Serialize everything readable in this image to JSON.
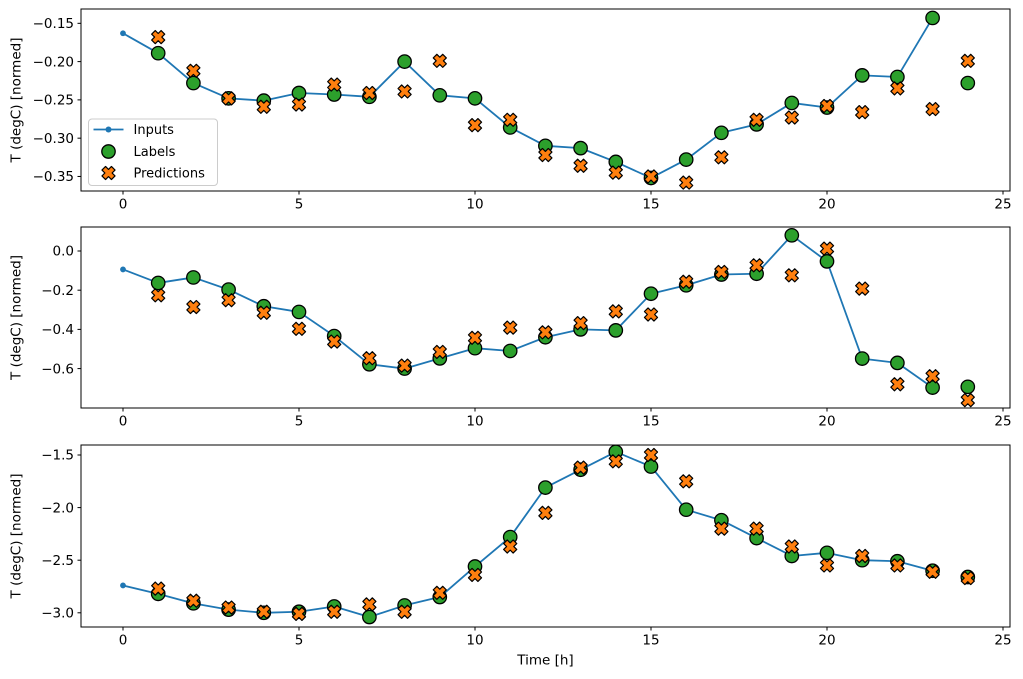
{
  "figure_title": "",
  "xlabel": "Time [h]",
  "ylabel": "T (degC) [normed]",
  "colors": {
    "inputs_line": "#1f77b4",
    "labels_marker": "#2ca02c",
    "predictions_marker": "#ff7f0e",
    "marker_edge": "#000000",
    "axis": "#000000",
    "text": "#000000",
    "legend_border": "#cccccc",
    "background": "#ffffff"
  },
  "legend": {
    "entries": [
      {
        "label": "Inputs",
        "type": "line-dot"
      },
      {
        "label": "Labels",
        "type": "circle"
      },
      {
        "label": "Predictions",
        "type": "x"
      }
    ]
  },
  "x_ticks": [
    {
      "value": 0,
      "label": "0"
    },
    {
      "value": 5,
      "label": "5"
    },
    {
      "value": 10,
      "label": "10"
    },
    {
      "value": 15,
      "label": "15"
    },
    {
      "value": 20,
      "label": "20"
    },
    {
      "value": 25,
      "label": "25"
    }
  ],
  "chart_data": [
    {
      "type": "line",
      "ylabel": "T (degC) [normed]",
      "xlim": [
        -1.193,
        25.199
      ],
      "ylim": [
        -0.369,
        -0.1313
      ],
      "grid": false,
      "y_ticks": [
        {
          "value": -0.15,
          "label": "−0.15"
        },
        {
          "value": -0.2,
          "label": "−0.20"
        },
        {
          "value": -0.25,
          "label": "−0.25"
        },
        {
          "value": -0.3,
          "label": "−0.30"
        },
        {
          "value": -0.35,
          "label": "−0.35"
        }
      ],
      "series": [
        {
          "name": "Inputs",
          "marker": "dot-line",
          "x": [
            0,
            1,
            2,
            3,
            4,
            5,
            6,
            7,
            8,
            9,
            10,
            11,
            12,
            13,
            14,
            15,
            16,
            17,
            18,
            19,
            20,
            21,
            22,
            23
          ],
          "values": [
            -0.163,
            -0.189,
            -0.228,
            -0.248,
            -0.251,
            -0.241,
            -0.243,
            -0.246,
            -0.2,
            -0.244,
            -0.248,
            -0.286,
            -0.31,
            -0.313,
            -0.331,
            -0.352,
            -0.328,
            -0.293,
            -0.282,
            -0.254,
            -0.26,
            -0.218,
            -0.22,
            -0.143
          ]
        },
        {
          "name": "Labels",
          "marker": "circle",
          "x": [
            1,
            2,
            3,
            4,
            5,
            6,
            7,
            8,
            9,
            10,
            11,
            12,
            13,
            14,
            15,
            16,
            17,
            18,
            19,
            20,
            21,
            22,
            23,
            24
          ],
          "values": [
            -0.189,
            -0.228,
            -0.248,
            -0.251,
            -0.241,
            -0.243,
            -0.246,
            -0.2,
            -0.244,
            -0.248,
            -0.286,
            -0.31,
            -0.313,
            -0.331,
            -0.352,
            -0.328,
            -0.293,
            -0.282,
            -0.254,
            -0.26,
            -0.218,
            -0.22,
            -0.143,
            -0.228
          ]
        },
        {
          "name": "Predictions",
          "marker": "X",
          "x": [
            1,
            2,
            3,
            4,
            5,
            6,
            7,
            8,
            9,
            10,
            11,
            12,
            13,
            14,
            15,
            16,
            17,
            18,
            19,
            20,
            21,
            22,
            23,
            24
          ],
          "values": [
            -0.168,
            -0.212,
            -0.248,
            -0.259,
            -0.256,
            -0.23,
            -0.241,
            -0.239,
            -0.199,
            -0.283,
            -0.276,
            -0.322,
            -0.336,
            -0.345,
            -0.35,
            -0.358,
            -0.325,
            -0.276,
            -0.273,
            -0.258,
            -0.266,
            -0.235,
            -0.262,
            -0.199
          ]
        }
      ]
    },
    {
      "type": "line",
      "ylabel": "T (degC) [normed]",
      "xlim": [
        -1.193,
        25.199
      ],
      "ylim": [
        -0.8011,
        0.1224
      ],
      "grid": false,
      "y_ticks": [
        {
          "value": 0.0,
          "label": "0.0"
        },
        {
          "value": -0.2,
          "label": "−0.2"
        },
        {
          "value": -0.4,
          "label": "−0.4"
        },
        {
          "value": -0.6,
          "label": "−0.6"
        }
      ],
      "series": [
        {
          "name": "Inputs",
          "marker": "dot-line",
          "x": [
            0,
            1,
            2,
            3,
            4,
            5,
            6,
            7,
            8,
            9,
            10,
            11,
            12,
            13,
            14,
            15,
            16,
            17,
            18,
            19,
            20,
            21,
            22,
            23
          ],
          "values": [
            -0.094,
            -0.163,
            -0.135,
            -0.197,
            -0.282,
            -0.311,
            -0.434,
            -0.578,
            -0.6,
            -0.548,
            -0.496,
            -0.51,
            -0.44,
            -0.4,
            -0.405,
            -0.218,
            -0.175,
            -0.12,
            -0.116,
            0.08,
            -0.053,
            -0.549,
            -0.571,
            -0.697
          ]
        },
        {
          "name": "Labels",
          "marker": "circle",
          "x": [
            1,
            2,
            3,
            4,
            5,
            6,
            7,
            8,
            9,
            10,
            11,
            12,
            13,
            14,
            15,
            16,
            17,
            18,
            19,
            20,
            21,
            22,
            23,
            24
          ],
          "values": [
            -0.163,
            -0.135,
            -0.197,
            -0.282,
            -0.311,
            -0.434,
            -0.578,
            -0.6,
            -0.548,
            -0.496,
            -0.51,
            -0.44,
            -0.4,
            -0.405,
            -0.218,
            -0.175,
            -0.12,
            -0.116,
            0.08,
            -0.053,
            -0.549,
            -0.571,
            -0.697,
            -0.693
          ]
        },
        {
          "name": "Predictions",
          "marker": "X",
          "x": [
            1,
            2,
            3,
            4,
            5,
            6,
            7,
            8,
            9,
            10,
            11,
            12,
            13,
            14,
            15,
            16,
            17,
            18,
            19,
            20,
            21,
            22,
            23,
            24
          ],
          "values": [
            -0.226,
            -0.286,
            -0.251,
            -0.315,
            -0.397,
            -0.462,
            -0.547,
            -0.585,
            -0.515,
            -0.443,
            -0.391,
            -0.415,
            -0.368,
            -0.308,
            -0.324,
            -0.157,
            -0.107,
            -0.073,
            -0.124,
            0.012,
            -0.192,
            -0.68,
            -0.639,
            -0.761
          ]
        }
      ]
    },
    {
      "type": "line",
      "ylabel": "T (degC) [normed]",
      "xlabel": "Time [h]",
      "xlim": [
        -1.193,
        25.199
      ],
      "ylim": [
        -3.135,
        -1.405
      ],
      "grid": false,
      "y_ticks": [
        {
          "value": -1.5,
          "label": "−1.5"
        },
        {
          "value": -2.0,
          "label": "−2.0"
        },
        {
          "value": -2.5,
          "label": "−2.5"
        },
        {
          "value": -3.0,
          "label": "−3.0"
        }
      ],
      "series": [
        {
          "name": "Inputs",
          "marker": "dot-line",
          "x": [
            0,
            1,
            2,
            3,
            4,
            5,
            6,
            7,
            8,
            9,
            10,
            11,
            12,
            13,
            14,
            15,
            16,
            17,
            18,
            19,
            20,
            21,
            22,
            23
          ],
          "values": [
            -2.74,
            -2.82,
            -2.91,
            -2.97,
            -3.0,
            -2.99,
            -2.94,
            -3.04,
            -2.93,
            -2.85,
            -2.56,
            -2.28,
            -1.81,
            -1.64,
            -1.47,
            -1.61,
            -2.02,
            -2.12,
            -2.29,
            -2.46,
            -2.43,
            -2.5,
            -2.51,
            -2.6
          ]
        },
        {
          "name": "Labels",
          "marker": "circle",
          "x": [
            1,
            2,
            3,
            4,
            5,
            6,
            7,
            8,
            9,
            10,
            11,
            12,
            13,
            14,
            15,
            16,
            17,
            18,
            19,
            20,
            21,
            22,
            23,
            24
          ],
          "values": [
            -2.82,
            -2.91,
            -2.97,
            -3.0,
            -2.99,
            -2.94,
            -3.04,
            -2.93,
            -2.85,
            -2.56,
            -2.28,
            -1.81,
            -1.64,
            -1.47,
            -1.61,
            -2.02,
            -2.12,
            -2.29,
            -2.46,
            -2.43,
            -2.5,
            -2.51,
            -2.6,
            -2.66
          ]
        },
        {
          "name": "Predictions",
          "marker": "X",
          "x": [
            1,
            2,
            3,
            4,
            5,
            6,
            7,
            8,
            9,
            10,
            11,
            12,
            13,
            14,
            15,
            16,
            17,
            18,
            19,
            20,
            21,
            22,
            23,
            24
          ],
          "values": [
            -2.77,
            -2.885,
            -2.95,
            -2.99,
            -3.01,
            -2.99,
            -2.92,
            -2.99,
            -2.81,
            -2.64,
            -2.37,
            -2.05,
            -1.62,
            -1.56,
            -1.5,
            -1.75,
            -2.2,
            -2.2,
            -2.37,
            -2.55,
            -2.46,
            -2.55,
            -2.61,
            -2.67
          ]
        }
      ]
    }
  ]
}
